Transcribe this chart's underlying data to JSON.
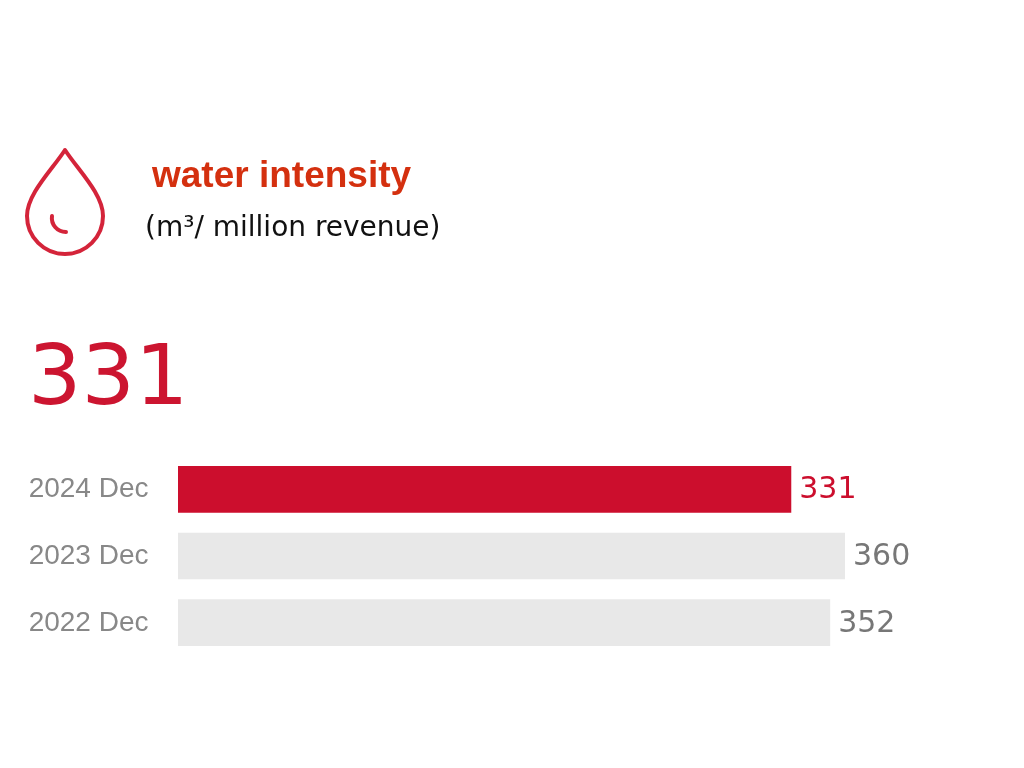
{
  "chart_data": {
    "type": "bar",
    "orientation": "horizontal",
    "title": "water intensity",
    "subtitle": "(m³/ million revenue)",
    "categories": [
      "2024 Dec",
      "2023 Dec",
      "2022 Dec"
    ],
    "values": [
      331,
      360,
      352
    ],
    "colors": [
      "#cc0e2d",
      "#e8e8e8",
      "#e8e8e8"
    ],
    "data_labels": true,
    "annotations": [
      "331"
    ]
  }
}
